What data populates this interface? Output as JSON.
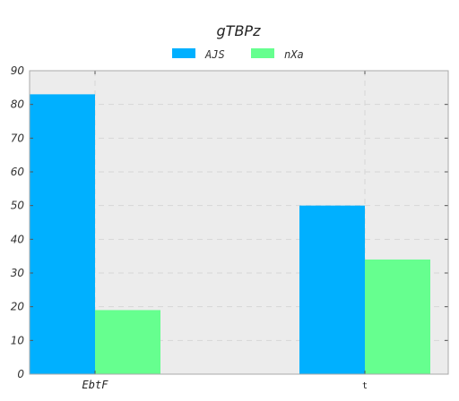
{
  "chart_data": {
    "type": "bar",
    "title": "gTBPz",
    "xlabel": "",
    "ylabel": "",
    "categories": [
      "EbtF",
      "t"
    ],
    "series": [
      {
        "name": "AJS",
        "color": "#00b0ff",
        "values": [
          83,
          50
        ]
      },
      {
        "name": "nXa",
        "color": "#66ff8f",
        "values": [
          19,
          34
        ]
      }
    ],
    "ylim": [
      0,
      90
    ],
    "yticks": [
      0,
      10,
      20,
      30,
      40,
      50,
      60,
      70,
      80,
      90
    ],
    "grid": true,
    "legend_position": "top-center",
    "plot_background": "#ececec"
  }
}
